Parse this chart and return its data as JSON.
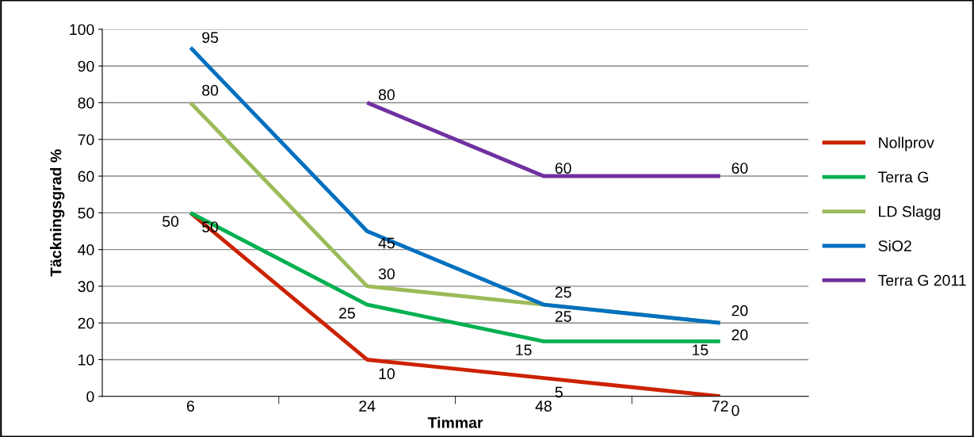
{
  "chart_data": {
    "type": "line",
    "xlabel": "Timmar",
    "ylabel": "Täckningsgrad %",
    "categories": [
      "6",
      "24",
      "48",
      "72"
    ],
    "series": [
      {
        "name": "Nollprov",
        "color": "#cc2200",
        "values": [
          50,
          10,
          5,
          0
        ]
      },
      {
        "name": "Terra G",
        "color": "#00b050",
        "values": [
          50,
          25,
          15,
          15
        ]
      },
      {
        "name": "LD Slagg",
        "color": "#9bbb59",
        "values": [
          80,
          30,
          25,
          20
        ]
      },
      {
        "name": "SiO2",
        "color": "#0070c0",
        "values": [
          95,
          45,
          25,
          20
        ]
      },
      {
        "name": "Terra G 2011",
        "color": "#7030a0",
        "values": [
          null,
          80,
          60,
          60
        ]
      }
    ],
    "ylim": [
      0,
      100
    ],
    "yticks": [
      0,
      10,
      20,
      30,
      40,
      50,
      60,
      70,
      80,
      90,
      100
    ],
    "grid": "y",
    "legend": "right",
    "data_labels": true,
    "marker": "none",
    "line_style": "solid"
  }
}
